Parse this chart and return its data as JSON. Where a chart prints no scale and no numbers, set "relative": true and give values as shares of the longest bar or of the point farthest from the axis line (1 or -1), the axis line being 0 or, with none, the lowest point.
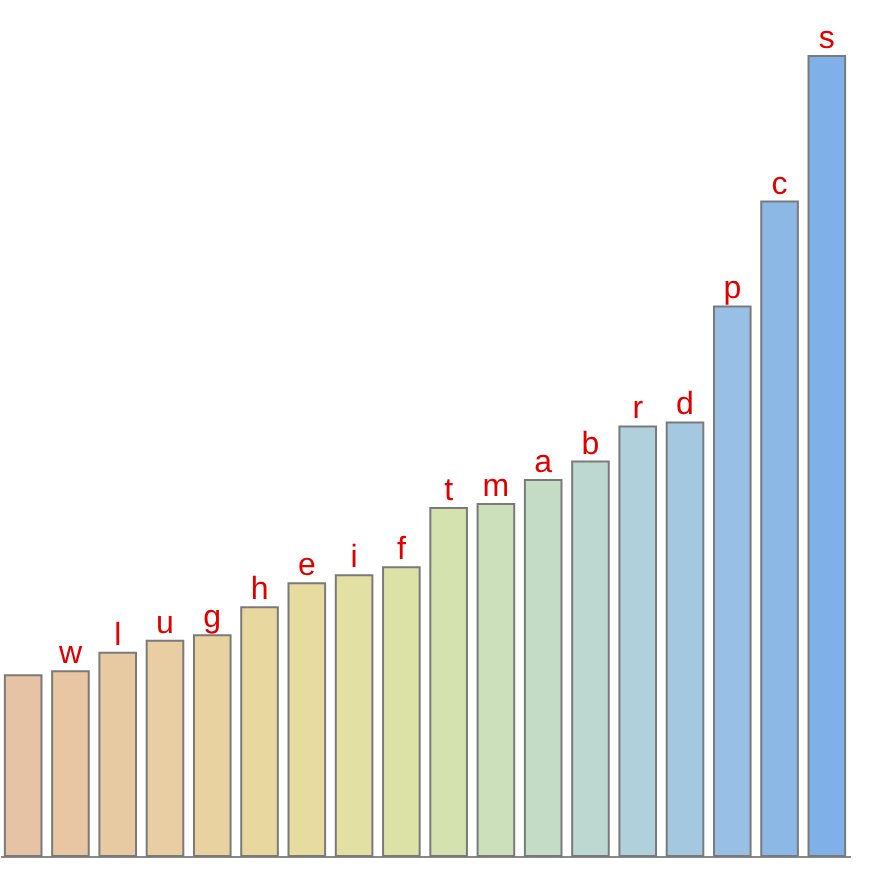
{
  "chart_data": {
    "type": "bar",
    "relative": true,
    "categories": [
      null,
      "w",
      "l",
      "u",
      "g",
      "h",
      "e",
      "i",
      "f",
      "t",
      "m",
      "a",
      "b",
      "r",
      "d",
      "p",
      "c",
      "s"
    ],
    "values": [
      0.226,
      0.231,
      0.254,
      0.269,
      0.276,
      0.311,
      0.341,
      0.351,
      0.361,
      0.435,
      0.44,
      0.47,
      0.493,
      0.537,
      0.542,
      0.687,
      0.818,
      1
    ],
    "colors": [
      "#e6c3a5",
      "#e8c6a4",
      "#e8caa2",
      "#e8cea2",
      "#e8d2a0",
      "#e8d8a0",
      "#e6dca0",
      "#e2e0a2",
      "#dce2a6",
      "#d4e2b0",
      "#cce0bc",
      "#c4dcc6",
      "#bcd8d0",
      "#b0d0dc",
      "#a4c8e0",
      "#98c0e4",
      "#8cb8e6",
      "#7fb0e8"
    ]
  }
}
